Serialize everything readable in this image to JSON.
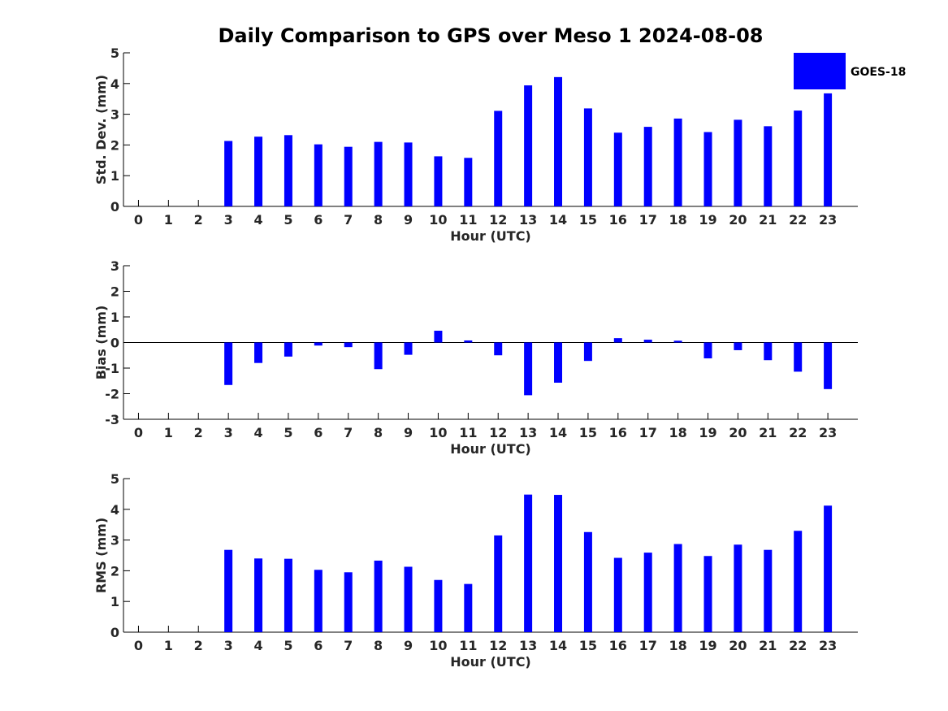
{
  "figure_title": "Daily Comparison to GPS over Meso 1 2024-08-08",
  "legend": {
    "label": "GOES-18",
    "color": "#0000ff",
    "placement": "top-right"
  },
  "chart_data": [
    {
      "type": "bar",
      "xlabel": "Hour (UTC)",
      "ylabel": "Std. Dev. (mm)",
      "ylim": [
        0,
        5
      ],
      "yticks": [
        0,
        1,
        2,
        3,
        4,
        5
      ],
      "categories": [
        0,
        1,
        2,
        3,
        4,
        5,
        6,
        7,
        8,
        9,
        10,
        11,
        12,
        13,
        14,
        15,
        16,
        17,
        18,
        19,
        20,
        21,
        22,
        23
      ],
      "series": [
        {
          "name": "GOES-18",
          "color": "#0000ff",
          "values": [
            null,
            null,
            null,
            2.13,
            2.27,
            2.32,
            2.02,
            1.94,
            2.1,
            2.08,
            1.63,
            1.58,
            3.11,
            3.94,
            4.21,
            3.19,
            2.4,
            2.59,
            2.86,
            2.42,
            2.82,
            2.61,
            3.12,
            3.68
          ]
        }
      ]
    },
    {
      "type": "bar",
      "xlabel": "Hour (UTC)",
      "ylabel": "Bias (mm)",
      "ylim": [
        -3,
        3
      ],
      "yticks": [
        -3,
        -2,
        -1,
        0,
        1,
        2,
        3
      ],
      "categories": [
        0,
        1,
        2,
        3,
        4,
        5,
        6,
        7,
        8,
        9,
        10,
        11,
        12,
        13,
        14,
        15,
        16,
        17,
        18,
        19,
        20,
        21,
        22,
        23
      ],
      "series": [
        {
          "name": "GOES-18",
          "color": "#0000ff",
          "values": [
            null,
            null,
            null,
            -1.66,
            -0.8,
            -0.55,
            -0.12,
            -0.18,
            -1.04,
            -0.48,
            0.46,
            0.08,
            -0.5,
            -2.06,
            -1.57,
            -0.72,
            0.17,
            0.11,
            0.07,
            -0.62,
            -0.3,
            -0.69,
            -1.14,
            -1.82
          ]
        }
      ]
    },
    {
      "type": "bar",
      "xlabel": "Hour (UTC)",
      "ylabel": "RMS (mm)",
      "ylim": [
        0,
        5
      ],
      "yticks": [
        0,
        1,
        2,
        3,
        4,
        5
      ],
      "categories": [
        0,
        1,
        2,
        3,
        4,
        5,
        6,
        7,
        8,
        9,
        10,
        11,
        12,
        13,
        14,
        15,
        16,
        17,
        18,
        19,
        20,
        21,
        22,
        23
      ],
      "series": [
        {
          "name": "GOES-18",
          "color": "#0000ff",
          "values": [
            null,
            null,
            null,
            2.68,
            2.4,
            2.39,
            2.03,
            1.95,
            2.33,
            2.13,
            1.7,
            1.57,
            3.15,
            4.48,
            4.47,
            3.26,
            2.42,
            2.59,
            2.87,
            2.48,
            2.85,
            2.68,
            3.3,
            4.12
          ]
        }
      ]
    }
  ]
}
